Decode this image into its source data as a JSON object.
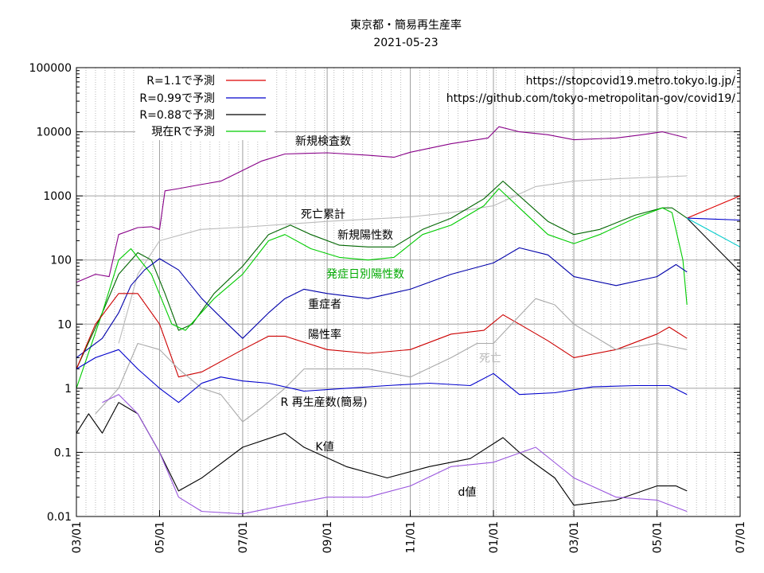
{
  "chart_data": {
    "type": "line",
    "title": "東京都・簡易再生産率",
    "subtitle": "2021-05-23",
    "y_scale": "log",
    "ylim": [
      0.01,
      100000
    ],
    "xlim": [
      "2020-03-01",
      "2021-07-01"
    ],
    "grid": true,
    "y_ticks": [
      "0.01",
      "0.1",
      "1",
      "10",
      "100",
      "1000",
      "10000",
      "100000"
    ],
    "x_ticks": [
      "03/01",
      "05/01",
      "07/01",
      "09/01",
      "11/01",
      "01/01",
      "03/01",
      "05/01",
      "07/01"
    ],
    "x_tick_dates": [
      "2020-03-01",
      "2020-05-01",
      "2020-07-01",
      "2020-09-01",
      "2020-11-01",
      "2021-01-01",
      "2021-03-01",
      "2021-05-01",
      "2021-07-01"
    ],
    "legend": {
      "placement": "top-left",
      "entries": [
        {
          "label": "R=1.1で予測",
          "color": "#dd0000"
        },
        {
          "label": "R=0.99で予測",
          "color": "#0000cc"
        },
        {
          "label": "R=0.88で予測",
          "color": "#000000"
        },
        {
          "label": "現在Rで予測",
          "color": "#00cc00"
        }
      ]
    },
    "source_lines": [
      "https://stopcovid19.metro.tokyo.lg.jp/",
      "https://github.com/tokyo-metropolitan-gov/covid19/"
    ],
    "colors": {
      "tests": "#880088",
      "cumulative_deaths": "#bbbbbb",
      "positives": "#006600",
      "onset": "#00cc00",
      "severe": "#0000aa",
      "positivity": "#cc0000",
      "daily_deaths": "#aaaaaa",
      "r": "#0000cc",
      "k": "#000000",
      "d": "#9955dd",
      "forecast_cyan": "#00cccc"
    },
    "annotations": {
      "tests": "新規検査数",
      "cumulative_deaths": "死亡累計",
      "positives": "新規陽性数",
      "onset": "発症日別陽性数",
      "severe": "重症者",
      "positivity": "陽性率",
      "daily_deaths": "死亡",
      "r": "R  再生産数(簡易)",
      "k": "K値",
      "d": "d値"
    },
    "series": [
      {
        "key": "tests",
        "points": [
          [
            "2020-03-01",
            45
          ],
          [
            "2020-03-15",
            60
          ],
          [
            "2020-03-25",
            55
          ],
          [
            "2020-04-01",
            250
          ],
          [
            "2020-04-15",
            320
          ],
          [
            "2020-04-25",
            330
          ],
          [
            "2020-05-01",
            300
          ],
          [
            "2020-05-05",
            1200
          ],
          [
            "2020-05-15",
            1300
          ],
          [
            "2020-05-31",
            1500
          ],
          [
            "2020-06-15",
            1700
          ],
          [
            "2020-07-01",
            2500
          ],
          [
            "2020-07-15",
            3500
          ],
          [
            "2020-08-01",
            4500
          ],
          [
            "2020-09-01",
            4700
          ],
          [
            "2020-10-01",
            4300
          ],
          [
            "2020-10-20",
            4000
          ],
          [
            "2020-11-01",
            4800
          ],
          [
            "2020-12-01",
            6500
          ],
          [
            "2020-12-28",
            8000
          ],
          [
            "2021-01-05",
            12000
          ],
          [
            "2021-01-20",
            10000
          ],
          [
            "2021-02-10",
            9000
          ],
          [
            "2021-03-01",
            7500
          ],
          [
            "2021-04-01",
            8000
          ],
          [
            "2021-04-20",
            9000
          ],
          [
            "2021-05-05",
            10000
          ],
          [
            "2021-05-23",
            8000
          ]
        ]
      },
      {
        "key": "cumulative_deaths",
        "points": [
          [
            "2020-04-01",
            5
          ],
          [
            "2020-04-15",
            60
          ],
          [
            "2020-05-01",
            200
          ],
          [
            "2020-05-31",
            300
          ],
          [
            "2020-07-01",
            325
          ],
          [
            "2020-09-01",
            400
          ],
          [
            "2020-11-01",
            470
          ],
          [
            "2020-12-01",
            550
          ],
          [
            "2021-01-01",
            700
          ],
          [
            "2021-02-01",
            1400
          ],
          [
            "2021-03-01",
            1700
          ],
          [
            "2021-04-01",
            1850
          ],
          [
            "2021-05-23",
            2050
          ]
        ]
      },
      {
        "key": "positives",
        "points": [
          [
            "2020-03-01",
            2
          ],
          [
            "2020-03-20",
            15
          ],
          [
            "2020-04-01",
            60
          ],
          [
            "2020-04-15",
            130
          ],
          [
            "2020-04-25",
            100
          ],
          [
            "2020-05-05",
            30
          ],
          [
            "2020-05-15",
            8
          ],
          [
            "2020-05-25",
            10
          ],
          [
            "2020-06-10",
            30
          ],
          [
            "2020-07-01",
            80
          ],
          [
            "2020-07-20",
            250
          ],
          [
            "2020-08-05",
            350
          ],
          [
            "2020-08-20",
            250
          ],
          [
            "2020-09-10",
            170
          ],
          [
            "2020-10-01",
            160
          ],
          [
            "2020-10-20",
            160
          ],
          [
            "2020-11-10",
            300
          ],
          [
            "2020-12-01",
            450
          ],
          [
            "2020-12-25",
            900
          ],
          [
            "2021-01-08",
            1700
          ],
          [
            "2021-01-20",
            1000
          ],
          [
            "2021-02-10",
            400
          ],
          [
            "2021-03-01",
            250
          ],
          [
            "2021-03-20",
            300
          ],
          [
            "2021-04-15",
            500
          ],
          [
            "2021-05-05",
            650
          ],
          [
            "2021-05-12",
            650
          ],
          [
            "2021-05-23",
            450
          ]
        ]
      },
      {
        "key": "onset",
        "points": [
          [
            "2020-03-01",
            1
          ],
          [
            "2020-03-20",
            15
          ],
          [
            "2020-04-01",
            100
          ],
          [
            "2020-04-10",
            150
          ],
          [
            "2020-04-25",
            60
          ],
          [
            "2020-05-10",
            10
          ],
          [
            "2020-05-20",
            8
          ],
          [
            "2020-06-10",
            25
          ],
          [
            "2020-07-01",
            60
          ],
          [
            "2020-07-20",
            200
          ],
          [
            "2020-08-01",
            250
          ],
          [
            "2020-08-20",
            150
          ],
          [
            "2020-09-10",
            110
          ],
          [
            "2020-10-01",
            100
          ],
          [
            "2020-10-20",
            110
          ],
          [
            "2020-11-10",
            250
          ],
          [
            "2020-12-01",
            350
          ],
          [
            "2020-12-25",
            700
          ],
          [
            "2021-01-05",
            1300
          ],
          [
            "2021-01-20",
            650
          ],
          [
            "2021-02-10",
            250
          ],
          [
            "2021-03-01",
            180
          ],
          [
            "2021-03-20",
            250
          ],
          [
            "2021-04-15",
            450
          ],
          [
            "2021-05-05",
            650
          ],
          [
            "2021-05-12",
            550
          ],
          [
            "2021-05-20",
            100
          ],
          [
            "2021-05-23",
            20
          ]
        ]
      },
      {
        "key": "severe",
        "points": [
          [
            "2020-03-01",
            3
          ],
          [
            "2020-03-20",
            6
          ],
          [
            "2020-04-01",
            15
          ],
          [
            "2020-04-10",
            40
          ],
          [
            "2020-04-20",
            70
          ],
          [
            "2020-05-01",
            105
          ],
          [
            "2020-05-15",
            70
          ],
          [
            "2020-06-01",
            25
          ],
          [
            "2020-06-20",
            10
          ],
          [
            "2020-07-01",
            6
          ],
          [
            "2020-07-20",
            15
          ],
          [
            "2020-08-01",
            25
          ],
          [
            "2020-08-15",
            35
          ],
          [
            "2020-09-01",
            30
          ],
          [
            "2020-10-01",
            25
          ],
          [
            "2020-11-01",
            35
          ],
          [
            "2020-12-01",
            60
          ],
          [
            "2021-01-01",
            90
          ],
          [
            "2021-01-20",
            155
          ],
          [
            "2021-02-10",
            120
          ],
          [
            "2021-03-01",
            55
          ],
          [
            "2021-04-01",
            40
          ],
          [
            "2021-05-01",
            55
          ],
          [
            "2021-05-15",
            85
          ],
          [
            "2021-05-23",
            65
          ]
        ]
      },
      {
        "key": "positivity",
        "points": [
          [
            "2020-03-01",
            2
          ],
          [
            "2020-03-15",
            10
          ],
          [
            "2020-04-01",
            30
          ],
          [
            "2020-04-15",
            30
          ],
          [
            "2020-05-01",
            10
          ],
          [
            "2020-05-15",
            1.5
          ],
          [
            "2020-06-01",
            1.8
          ],
          [
            "2020-07-01",
            4
          ],
          [
            "2020-07-20",
            6.5
          ],
          [
            "2020-08-01",
            6.5
          ],
          [
            "2020-09-01",
            4
          ],
          [
            "2020-10-01",
            3.5
          ],
          [
            "2020-11-01",
            4
          ],
          [
            "2020-12-01",
            7
          ],
          [
            "2020-12-25",
            8
          ],
          [
            "2021-01-08",
            14
          ],
          [
            "2021-01-20",
            10
          ],
          [
            "2021-02-10",
            5.5
          ],
          [
            "2021-03-01",
            3
          ],
          [
            "2021-04-01",
            4
          ],
          [
            "2021-05-01",
            7
          ],
          [
            "2021-05-10",
            9
          ],
          [
            "2021-05-23",
            6
          ]
        ]
      },
      {
        "key": "daily_deaths",
        "points": [
          [
            "2020-03-15",
            0.4
          ],
          [
            "2020-04-01",
            1
          ],
          [
            "2020-04-15",
            5
          ],
          [
            "2020-05-01",
            4
          ],
          [
            "2020-05-15",
            2
          ],
          [
            "2020-06-01",
            1
          ],
          [
            "2020-06-15",
            0.8
          ],
          [
            "2020-07-01",
            0.3
          ],
          [
            "2020-07-15",
            0.5
          ],
          [
            "2020-08-01",
            1
          ],
          [
            "2020-08-15",
            2
          ],
          [
            "2020-09-01",
            2
          ],
          [
            "2020-10-01",
            2
          ],
          [
            "2020-11-01",
            1.5
          ],
          [
            "2020-12-01",
            3
          ],
          [
            "2020-12-20",
            5
          ],
          [
            "2021-01-01",
            5
          ],
          [
            "2021-02-01",
            25
          ],
          [
            "2021-02-15",
            20
          ],
          [
            "2021-03-01",
            10
          ],
          [
            "2021-04-01",
            4
          ],
          [
            "2021-05-01",
            5
          ],
          [
            "2021-05-23",
            4
          ]
        ]
      },
      {
        "key": "r",
        "points": [
          [
            "2020-03-01",
            2
          ],
          [
            "2020-03-15",
            3
          ],
          [
            "2020-04-01",
            4
          ],
          [
            "2020-04-15",
            2
          ],
          [
            "2020-05-01",
            1
          ],
          [
            "2020-05-15",
            0.6
          ],
          [
            "2020-06-01",
            1.2
          ],
          [
            "2020-06-15",
            1.5
          ],
          [
            "2020-07-01",
            1.3
          ],
          [
            "2020-07-20",
            1.2
          ],
          [
            "2020-08-15",
            0.9
          ],
          [
            "2020-09-15",
            1.0
          ],
          [
            "2020-10-15",
            1.1
          ],
          [
            "2020-11-15",
            1.2
          ],
          [
            "2020-12-15",
            1.1
          ],
          [
            "2021-01-01",
            1.7
          ],
          [
            "2021-01-20",
            0.8
          ],
          [
            "2021-02-15",
            0.85
          ],
          [
            "2021-03-15",
            1.05
          ],
          [
            "2021-04-15",
            1.1
          ],
          [
            "2021-05-10",
            1.1
          ],
          [
            "2021-05-23",
            0.8
          ]
        ]
      },
      {
        "key": "k",
        "points": [
          [
            "2020-03-01",
            0.2
          ],
          [
            "2020-03-10",
            0.4
          ],
          [
            "2020-03-20",
            0.2
          ],
          [
            "2020-04-01",
            0.6
          ],
          [
            "2020-04-15",
            0.4
          ],
          [
            "2020-05-01",
            0.1
          ],
          [
            "2020-05-15",
            0.025
          ],
          [
            "2020-06-01",
            0.04
          ],
          [
            "2020-07-01",
            0.12
          ],
          [
            "2020-08-01",
            0.2
          ],
          [
            "2020-08-15",
            0.12
          ],
          [
            "2020-09-15",
            0.06
          ],
          [
            "2020-10-15",
            0.04
          ],
          [
            "2020-11-15",
            0.06
          ],
          [
            "2020-12-15",
            0.08
          ],
          [
            "2021-01-08",
            0.17
          ],
          [
            "2021-01-20",
            0.1
          ],
          [
            "2021-02-15",
            0.04
          ],
          [
            "2021-03-01",
            0.015
          ],
          [
            "2021-04-01",
            0.018
          ],
          [
            "2021-05-01",
            0.03
          ],
          [
            "2021-05-15",
            0.03
          ],
          [
            "2021-05-23",
            0.025
          ]
        ]
      },
      {
        "key": "d",
        "points": [
          [
            "2020-03-20",
            0.6
          ],
          [
            "2020-04-01",
            0.8
          ],
          [
            "2020-04-15",
            0.4
          ],
          [
            "2020-05-01",
            0.1
          ],
          [
            "2020-05-15",
            0.02
          ],
          [
            "2020-06-01",
            0.012
          ],
          [
            "2020-07-01",
            0.011
          ],
          [
            "2020-08-01",
            0.015
          ],
          [
            "2020-09-01",
            0.02
          ],
          [
            "2020-10-01",
            0.02
          ],
          [
            "2020-11-01",
            0.03
          ],
          [
            "2020-12-01",
            0.06
          ],
          [
            "2021-01-01",
            0.07
          ],
          [
            "2021-02-01",
            0.12
          ],
          [
            "2021-03-01",
            0.04
          ],
          [
            "2021-04-01",
            0.02
          ],
          [
            "2021-05-01",
            0.018
          ],
          [
            "2021-05-23",
            0.012
          ]
        ]
      },
      {
        "key": "forecast_r110",
        "points": [
          [
            "2021-05-23",
            450
          ],
          [
            "2021-07-01",
            1000
          ]
        ]
      },
      {
        "key": "forecast_r099",
        "points": [
          [
            "2021-05-23",
            450
          ],
          [
            "2021-07-01",
            420
          ]
        ]
      },
      {
        "key": "forecast_r088",
        "points": [
          [
            "2021-05-23",
            450
          ],
          [
            "2021-07-01",
            65
          ]
        ]
      },
      {
        "key": "forecast_cyan",
        "points": [
          [
            "2021-05-23",
            450
          ],
          [
            "2021-07-01",
            160
          ]
        ]
      }
    ]
  }
}
